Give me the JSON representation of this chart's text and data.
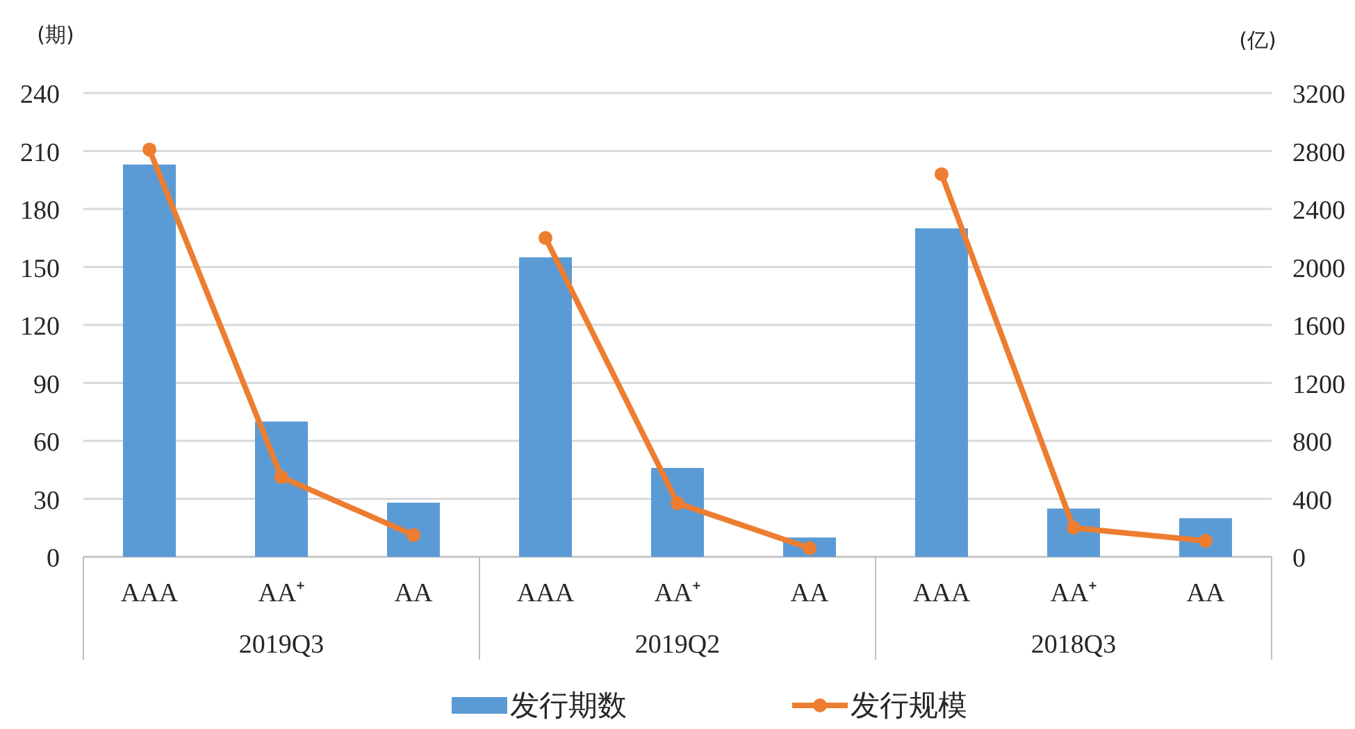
{
  "chart_data": {
    "type": "bar",
    "categories": [
      "AAA",
      "AA⁺",
      "AA",
      "AAA",
      "AA⁺",
      "AA",
      "AAA",
      "AA⁺",
      "AA"
    ],
    "series": [
      {
        "name": "发行期数",
        "color": "#5b9bd5",
        "values": [
          203,
          70,
          28,
          155,
          46,
          10,
          170,
          25,
          20
        ]
      },
      {
        "name": "发行规模",
        "type": "line",
        "axis": "y2",
        "color": "#ed7d31",
        "marker": "circle",
        "values": [
          2810,
          550,
          150,
          2200,
          370,
          60,
          2640,
          200,
          110
        ]
      }
    ],
    "ylabel": "(期)",
    "y2label": "(亿)",
    "ylim": [
      0,
      240
    ],
    "yticks": [
      0,
      30,
      60,
      90,
      120,
      150,
      180,
      210,
      240
    ],
    "y2lim": [
      0,
      3200
    ],
    "y2ticks": [
      0,
      400,
      800,
      1200,
      1600,
      2000,
      2400,
      2800,
      3200
    ],
    "annotations": [
      "2019Q3",
      "2019Q2",
      "2018Q3"
    ],
    "grid": "y",
    "legend": "bottom"
  }
}
